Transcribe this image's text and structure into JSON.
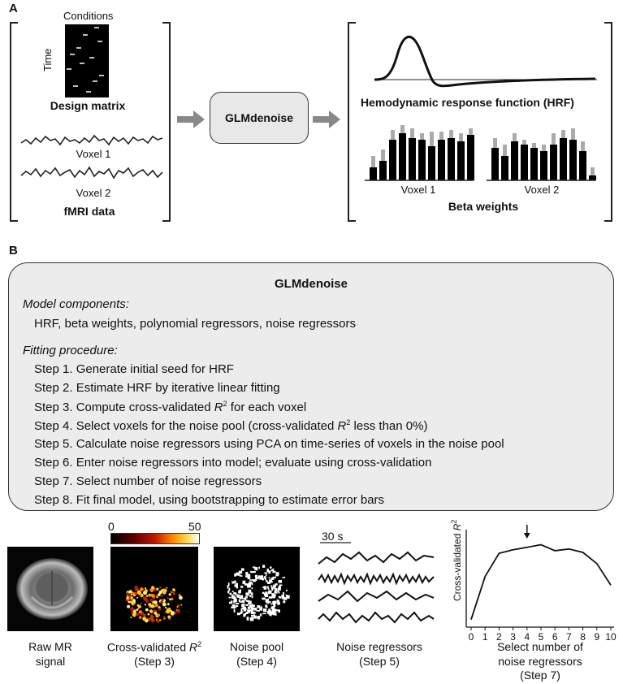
{
  "panel_a": {
    "letter": "A",
    "design_matrix": {
      "top_label": "Conditions",
      "side_label": "Time",
      "caption": "Design matrix"
    },
    "fmri": {
      "voxel1_label": "Voxel 1",
      "voxel2_label": "Voxel 2",
      "caption": "fMRI data"
    },
    "center_box": "GLMdenoise",
    "hrf_caption": "Hemodynamic response function (HRF)",
    "beta": {
      "voxel1_label": "Voxel 1",
      "voxel2_label": "Voxel 2",
      "caption": "Beta weights"
    }
  },
  "panel_b": {
    "letter": "B",
    "title": "GLMdenoise",
    "model_heading": "Model components:",
    "model_text": "HRF, beta weights, polynomial regressors, noise regressors",
    "fitting_heading": "Fitting procedure:",
    "steps": [
      "Step 1. Generate initial seed for HRF",
      "Step 2. Estimate HRF by iterative linear fitting",
      "Step 3. Compute cross-validated ",
      "Step 4. Select voxels for the noise pool (cross-validated ",
      "Step 5. Calculate noise regressors using PCA on time-series of voxels in the noise pool",
      "Step 6. Enter noise regressors into model; evaluate using cross-validation",
      "Step 7. Select number of noise regressors",
      "Step 8. Fit final model, using bootstrapping to estimate error bars"
    ],
    "step3_tail": " for each voxel",
    "step4_tail": " less than 0%)",
    "r_symbol": "R",
    "r_exp": "2"
  },
  "bottom": {
    "colorbar_min": "0",
    "colorbar_max": "50",
    "raw_caption1": "Raw MR",
    "raw_caption2": "signal",
    "cv_caption1": "Cross-validated ",
    "cv_caption2": "(Step 3)",
    "pool_caption1": "Noise pool",
    "pool_caption2": "(Step 4)",
    "scale_label": "30 s",
    "reg_caption1": "Noise regressors",
    "reg_caption2": "(Step 5)",
    "sel_caption1": "Select number of",
    "sel_caption2": "noise regressors",
    "sel_caption3": "(Step 7)"
  },
  "chart_data": {
    "type": "line",
    "ylabel": "Cross-validated R²",
    "x": [
      0,
      1,
      2,
      3,
      4,
      5,
      6,
      7,
      8,
      9,
      10
    ],
    "values": [
      0.05,
      0.55,
      0.82,
      0.86,
      0.89,
      0.92,
      0.85,
      0.87,
      0.83,
      0.7,
      0.45
    ],
    "ylim": [
      0,
      1
    ],
    "xlim": [
      0,
      10
    ],
    "arrow_at": 4,
    "x_tick_labels": [
      "0",
      "1",
      "2",
      "3",
      "4",
      "5",
      "6",
      "7",
      "8",
      "9",
      "10"
    ]
  }
}
